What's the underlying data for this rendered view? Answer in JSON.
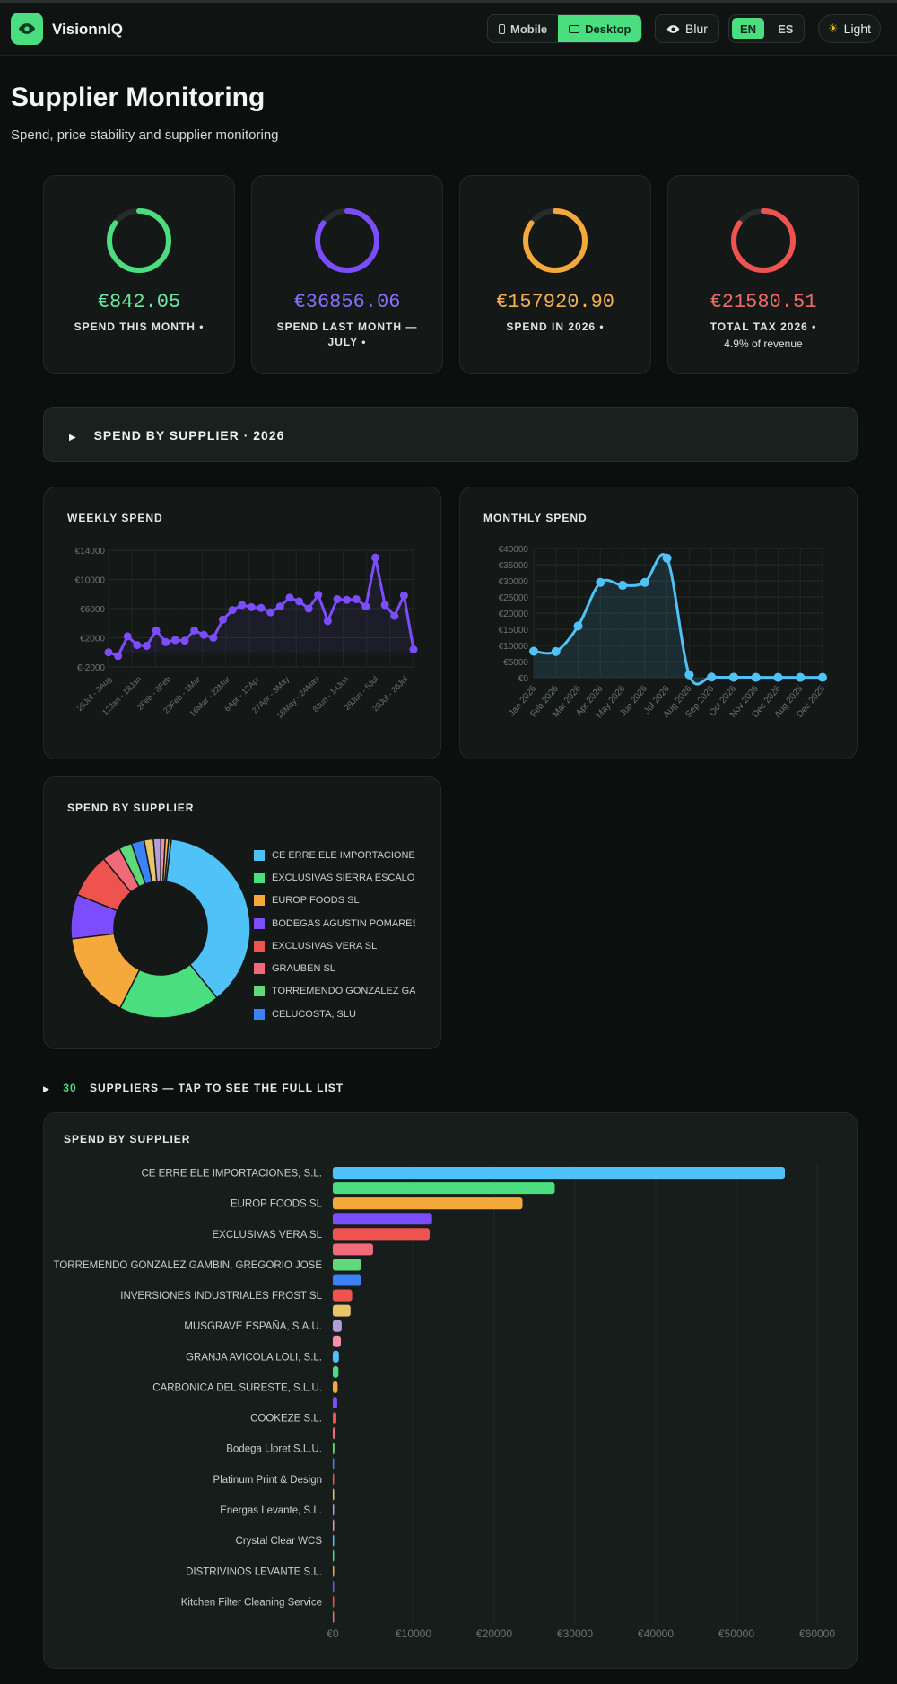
{
  "app": {
    "title": "VisionnIQ"
  },
  "topbar": {
    "view_mobile": "Mobile",
    "view_desktop": "Desktop",
    "blur": "Blur",
    "lang_en": "EN",
    "lang_es": "ES",
    "theme": "Light"
  },
  "header": {
    "title": "Supplier Monitoring",
    "subtitle": "Spend, price stability and supplier monitoring"
  },
  "kpis": [
    {
      "value": "€842.05",
      "label": "SPEND THIS MONTH •",
      "sub": "",
      "color": "#4ade80",
      "fill": 0.85
    },
    {
      "value": "€36856.06",
      "label": "SPEND LAST MONTH — JULY •",
      "sub": "",
      "color": "#7c4dff",
      "fill": 0.85
    },
    {
      "value": "€157920.90",
      "label": "SPEND IN 2026 •",
      "sub": "",
      "color": "#f5a93b",
      "fill": 0.85
    },
    {
      "value": "€21580.51",
      "label": "TOTAL TAX 2026 •",
      "sub": "4.9% of revenue",
      "color": "#ef5350",
      "fill": 0.85
    }
  ],
  "collapse": {
    "label": "SPEND BY SUPPLIER · 2026"
  },
  "suppliers_toggle": {
    "count": "30",
    "label": "SUPPLIERS — TAP TO SEE THE FULL LIST"
  },
  "chart_data": [
    {
      "type": "line",
      "title": "WEEKLY SPEND",
      "color": "#7c4dff",
      "ylim": [
        -2000,
        14000
      ],
      "y_ticks": [
        "€14000",
        "€10000",
        "€6000",
        "€2000",
        "€-2000"
      ],
      "x_tick_labels": [
        "28Jul - 3Aug",
        "12Jan - 18Jan",
        "2Feb - 8Feb",
        "23Feb - 1Mar",
        "16Mar - 22Mar",
        "6Apr - 12Apr",
        "27Apr - 3May",
        "18May - 24May",
        "8Jun - 14Jun",
        "29Jun - 5Jul",
        "20Jul - 26Jul"
      ],
      "values": [
        0,
        -500,
        2200,
        1000,
        900,
        3000,
        1400,
        1700,
        1600,
        3000,
        2400,
        2000,
        4500,
        5800,
        6500,
        6200,
        6100,
        5500,
        6300,
        7500,
        7000,
        6000,
        7900,
        4300,
        7300,
        7200,
        7300,
        6300,
        13000,
        6500,
        5000,
        7800,
        400
      ]
    },
    {
      "type": "area",
      "title": "MONTHLY SPEND",
      "color": "#4fc3f7",
      "ylim": [
        0,
        40000
      ],
      "y_ticks": [
        "€40000",
        "€35000",
        "€30000",
        "€25000",
        "€20000",
        "€15000",
        "€10000",
        "€5000",
        "€0"
      ],
      "categories": [
        "Jan 2026",
        "Feb 2026",
        "Mar 2026",
        "Apr 2026",
        "May 2026",
        "Jun 2026",
        "Jul 2026",
        "Aug 2026",
        "Sep 2026",
        "Oct 2026",
        "Nov 2026",
        "Dec 2026",
        "Aug 2025",
        "Dec 2025"
      ],
      "values": [
        8200,
        8100,
        16000,
        29500,
        28600,
        29500,
        37000,
        900,
        200,
        150,
        120,
        100,
        100,
        100
      ]
    },
    {
      "type": "pie",
      "title": "SPEND BY SUPPLIER",
      "legend": [
        "CE ERRE ELE IMPORTACIONES",
        "EXCLUSIVAS SIERRA ESCALON",
        "EUROP FOODS SL",
        "BODEGAS AGUSTIN POMARES",
        "EXCLUSIVAS VERA SL",
        "GRAUBEN SL",
        "TORREMENDO GONZALEZ GAMBIN",
        "CELUCOSTA, SLU"
      ],
      "colors": [
        "#4fc3f7",
        "#4ade80",
        "#f5a93b",
        "#7c4dff",
        "#ef5350",
        "#f06a7a",
        "#5fd97a",
        "#3b82f6",
        "#e9c46a",
        "#b39ddb",
        "#f48fb1",
        "#ffb74d",
        "#64b5f6"
      ],
      "values": [
        56000,
        27500,
        23500,
        12000,
        12000,
        5000,
        3500,
        3500,
        2500,
        2000,
        1200,
        900,
        700
      ]
    },
    {
      "type": "bar",
      "title": "SPEND BY SUPPLIER",
      "orientation": "horizontal",
      "xlim": [
        0,
        60000
      ],
      "x_ticks": [
        "€0",
        "€10000",
        "€20000",
        "€30000",
        "€40000",
        "€50000",
        "€60000"
      ],
      "categories": [
        "CE ERRE ELE IMPORTACIONES, S.L.",
        "",
        "EUROP FOODS SL",
        "",
        "EXCLUSIVAS VERA SL",
        "",
        "TORREMENDO GONZALEZ GAMBIN, GREGORIO JOSE",
        "",
        "INVERSIONES INDUSTRIALES FROST SL",
        "",
        "MUSGRAVE ESPAÑA, S.A.U.",
        "",
        "GRANJA AVICOLA LOLI, S.L.",
        "",
        "CARBONICA DEL SURESTE, S.L.U.",
        "",
        "COOKEZE S.L.",
        "",
        "Bodega Lloret S.L.U.",
        "",
        "Platinum Print & Design",
        "",
        "Energas Levante, S.L.",
        "",
        "Crystal Clear WCS",
        "",
        "DISTRIVINOS LEVANTE S.L.",
        "",
        "Kitchen Filter Cleaning Service",
        ""
      ],
      "values": [
        56000,
        27500,
        23500,
        12300,
        12000,
        5000,
        3500,
        3500,
        2400,
        2200,
        1100,
        1000,
        750,
        700,
        600,
        550,
        450,
        300,
        200,
        150,
        120,
        100,
        80,
        60,
        40,
        30,
        25,
        20,
        15,
        10
      ],
      "colors": [
        "#4fc3f7",
        "#4ade80",
        "#f5a93b",
        "#7c4dff",
        "#ef5350",
        "#f06a7a",
        "#5fd97a",
        "#3b82f6",
        "#ef5350",
        "#e9c46a",
        "#b39ddb",
        "#f48fb1",
        "#4fc3f7",
        "#4ade80",
        "#f5a93b",
        "#7c4dff",
        "#ef5350",
        "#f06a7a",
        "#5fd97a",
        "#3b82f6",
        "#ef5350",
        "#e9c46a",
        "#b39ddb",
        "#f48fb1",
        "#4fc3f7",
        "#4ade80",
        "#f5a93b",
        "#7c4dff",
        "#ef5350",
        "#f06a7a"
      ]
    }
  ]
}
